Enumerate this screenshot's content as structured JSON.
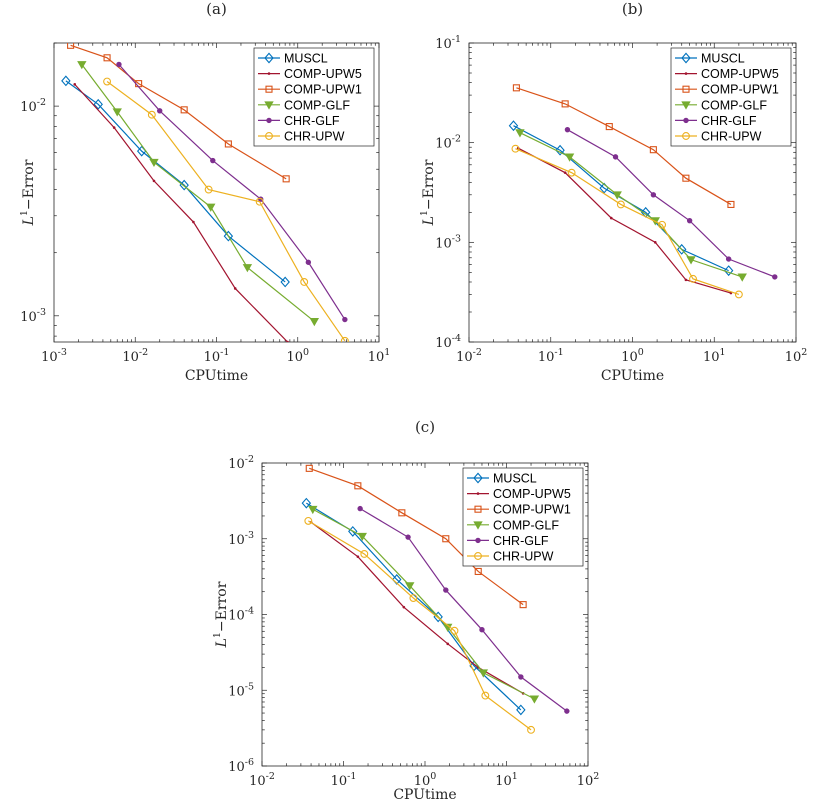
{
  "chart_data": [
    {
      "type": "line",
      "panel_label": "(a)",
      "xlabel": "CPUtime",
      "ylabel_main": "L",
      "ylabel_sup": "1",
      "ylabel_rest": "−Error",
      "xscale": "log",
      "yscale": "log",
      "xlim": [
        0.001,
        10
      ],
      "ylim": [
        0.00075,
        0.02
      ],
      "xticks": [
        {
          "value": 0.001,
          "mant": "10",
          "exp": "-3"
        },
        {
          "value": 0.01,
          "mant": "10",
          "exp": "-2"
        },
        {
          "value": 0.1,
          "mant": "10",
          "exp": "-1"
        },
        {
          "value": 1,
          "mant": "10",
          "exp": "0"
        },
        {
          "value": 10,
          "mant": "10",
          "exp": "1"
        }
      ],
      "yticks": [
        {
          "value": 0.001,
          "mant": "10",
          "exp": "-3"
        },
        {
          "value": 0.01,
          "mant": "10",
          "exp": "-2"
        }
      ],
      "grid": false,
      "legend": "top-right",
      "series": [
        {
          "name": "MUSCL",
          "color": "#0072BD",
          "marker": "diamond",
          "x": [
            0.0014,
            0.0035,
            0.012,
            0.04,
            0.14,
            0.7
          ],
          "y": [
            0.0132,
            0.0102,
            0.0061,
            0.0042,
            0.0024,
            0.00145
          ]
        },
        {
          "name": "COMP-UPW5",
          "color": "#A2142F",
          "marker": "point",
          "x": [
            0.0018,
            0.0055,
            0.017,
            0.052,
            0.17,
            0.75
          ],
          "y": [
            0.0127,
            0.0079,
            0.0044,
            0.0028,
            0.00135,
            0.00075
          ]
        },
        {
          "name": "COMP-UPW1",
          "color": "#D95319",
          "marker": "square",
          "x": [
            0.0016,
            0.0045,
            0.011,
            0.04,
            0.14,
            0.72
          ],
          "y": [
            0.0195,
            0.017,
            0.0128,
            0.0096,
            0.0066,
            0.0045
          ]
        },
        {
          "name": "COMP-GLF",
          "color": "#77AC30",
          "marker": "triangle-down",
          "x": [
            0.0022,
            0.006,
            0.017,
            0.085,
            0.24,
            1.6
          ],
          "y": [
            0.0158,
            0.0094,
            0.0054,
            0.0033,
            0.0017,
            0.00094
          ]
        },
        {
          "name": "CHR-GLF",
          "color": "#7E2F8E",
          "marker": "asterisk",
          "x": [
            0.0063,
            0.02,
            0.09,
            0.35,
            1.35,
            3.8
          ],
          "y": [
            0.0158,
            0.0095,
            0.0055,
            0.0036,
            0.0018,
            0.00096
          ]
        },
        {
          "name": "CHR-UPW",
          "color": "#EDB120",
          "marker": "circle",
          "x": [
            0.0045,
            0.016,
            0.08,
            0.34,
            1.2,
            3.8
          ],
          "y": [
            0.0131,
            0.0091,
            0.004,
            0.0035,
            0.00145,
            0.00076
          ]
        }
      ]
    },
    {
      "type": "line",
      "panel_label": "(b)",
      "xlabel": "CPUtime",
      "ylabel_main": "L",
      "ylabel_sup": "1",
      "ylabel_rest": "−Error",
      "xscale": "log",
      "yscale": "log",
      "xlim": [
        0.01,
        100
      ],
      "ylim": [
        0.0001,
        0.1
      ],
      "xticks": [
        {
          "value": 0.01,
          "mant": "10",
          "exp": "-2"
        },
        {
          "value": 0.1,
          "mant": "10",
          "exp": "-1"
        },
        {
          "value": 1,
          "mant": "10",
          "exp": "0"
        },
        {
          "value": 10,
          "mant": "10",
          "exp": "1"
        },
        {
          "value": 100,
          "mant": "10",
          "exp": "2"
        }
      ],
      "yticks": [
        {
          "value": 0.0001,
          "mant": "10",
          "exp": "-4"
        },
        {
          "value": 0.001,
          "mant": "10",
          "exp": "-3"
        },
        {
          "value": 0.01,
          "mant": "10",
          "exp": "-2"
        },
        {
          "value": 0.1,
          "mant": "10",
          "exp": "-1"
        }
      ],
      "grid": false,
      "legend": "top-right",
      "series": [
        {
          "name": "MUSCL",
          "color": "#0072BD",
          "marker": "diamond",
          "x": [
            0.035,
            0.13,
            0.45,
            1.45,
            4.0,
            15
          ],
          "y": [
            0.0148,
            0.0084,
            0.0035,
            0.002,
            0.00085,
            0.00052
          ]
        },
        {
          "name": "COMP-UPW5",
          "color": "#A2142F",
          "marker": "point",
          "x": [
            0.04,
            0.15,
            0.55,
            1.9,
            4.5,
            16
          ],
          "y": [
            0.0088,
            0.005,
            0.00175,
            0.001,
            0.00042,
            0.00031
          ]
        },
        {
          "name": "COMP-UPW1",
          "color": "#D95319",
          "marker": "square",
          "x": [
            0.038,
            0.15,
            0.52,
            1.8,
            4.5,
            16
          ],
          "y": [
            0.0355,
            0.0245,
            0.0145,
            0.0085,
            0.0044,
            0.0024
          ]
        },
        {
          "name": "COMP-GLF",
          "color": "#77AC30",
          "marker": "triangle-down",
          "x": [
            0.042,
            0.17,
            0.65,
            1.9,
            5.2,
            22
          ],
          "y": [
            0.0126,
            0.0072,
            0.003,
            0.00165,
            0.00067,
            0.00045
          ]
        },
        {
          "name": "CHR-GLF",
          "color": "#7E2F8E",
          "marker": "asterisk",
          "x": [
            0.16,
            0.62,
            1.8,
            5.0,
            15,
            55
          ],
          "y": [
            0.0135,
            0.0072,
            0.003,
            0.00165,
            0.00068,
            0.00045
          ]
        },
        {
          "name": "CHR-UPW",
          "color": "#EDB120",
          "marker": "circle",
          "x": [
            0.037,
            0.18,
            0.72,
            2.3,
            5.5,
            20
          ],
          "y": [
            0.0087,
            0.005,
            0.0024,
            0.0015,
            0.00043,
            0.0003
          ]
        }
      ]
    },
    {
      "type": "line",
      "panel_label": "(c)",
      "xlabel": "CPUtime",
      "ylabel_main": "L",
      "ylabel_sup": "1",
      "ylabel_rest": "−Error",
      "xscale": "log",
      "yscale": "log",
      "xlim": [
        0.01,
        100
      ],
      "ylim": [
        1e-06,
        0.01
      ],
      "xticks": [
        {
          "value": 0.01,
          "mant": "10",
          "exp": "-2"
        },
        {
          "value": 0.1,
          "mant": "10",
          "exp": "-1"
        },
        {
          "value": 1,
          "mant": "10",
          "exp": "0"
        },
        {
          "value": 10,
          "mant": "10",
          "exp": "1"
        },
        {
          "value": 100,
          "mant": "10",
          "exp": "2"
        }
      ],
      "yticks": [
        {
          "value": 1e-06,
          "mant": "10",
          "exp": "-6"
        },
        {
          "value": 1e-05,
          "mant": "10",
          "exp": "-5"
        },
        {
          "value": 0.0001,
          "mant": "10",
          "exp": "-4"
        },
        {
          "value": 0.001,
          "mant": "10",
          "exp": "-3"
        },
        {
          "value": 0.01,
          "mant": "10",
          "exp": "-2"
        }
      ],
      "grid": false,
      "legend": "top-right",
      "series": [
        {
          "name": "MUSCL",
          "color": "#0072BD",
          "marker": "diamond",
          "x": [
            0.035,
            0.13,
            0.45,
            1.45,
            4.0,
            15
          ],
          "y": [
            0.00295,
            0.00125,
            0.00029,
            9.3e-05,
            2.1e-05,
            5.5e-06
          ]
        },
        {
          "name": "COMP-UPW5",
          "color": "#A2142F",
          "marker": "point",
          "x": [
            0.04,
            0.15,
            0.55,
            1.9,
            4.5,
            16
          ],
          "y": [
            0.00165,
            0.00058,
            0.000125,
            4.1e-05,
            2e-05,
            9.1e-06
          ]
        },
        {
          "name": "COMP-UPW1",
          "color": "#D95319",
          "marker": "square",
          "x": [
            0.038,
            0.15,
            0.52,
            1.8,
            4.5,
            16
          ],
          "y": [
            0.0085,
            0.005,
            0.0022,
            0.001,
            0.00037,
            0.000135
          ]
        },
        {
          "name": "COMP-GLF",
          "color": "#77AC30",
          "marker": "triangle-down",
          "x": [
            0.042,
            0.17,
            0.65,
            1.9,
            5.2,
            22
          ],
          "y": [
            0.00245,
            0.00108,
            0.00024,
            6.8e-05,
            1.7e-05,
            7.7e-06
          ]
        },
        {
          "name": "CHR-GLF",
          "color": "#7E2F8E",
          "marker": "asterisk",
          "x": [
            0.16,
            0.62,
            1.8,
            5.0,
            15,
            55
          ],
          "y": [
            0.0025,
            0.00105,
            0.00021,
            6.3e-05,
            1.5e-05,
            5.3e-06
          ]
        },
        {
          "name": "CHR-UPW",
          "color": "#EDB120",
          "marker": "circle",
          "x": [
            0.037,
            0.18,
            0.72,
            2.3,
            5.5,
            20
          ],
          "y": [
            0.00172,
            0.00063,
            0.000165,
            6.1e-05,
            8.5e-06,
            3e-06
          ]
        }
      ]
    }
  ]
}
